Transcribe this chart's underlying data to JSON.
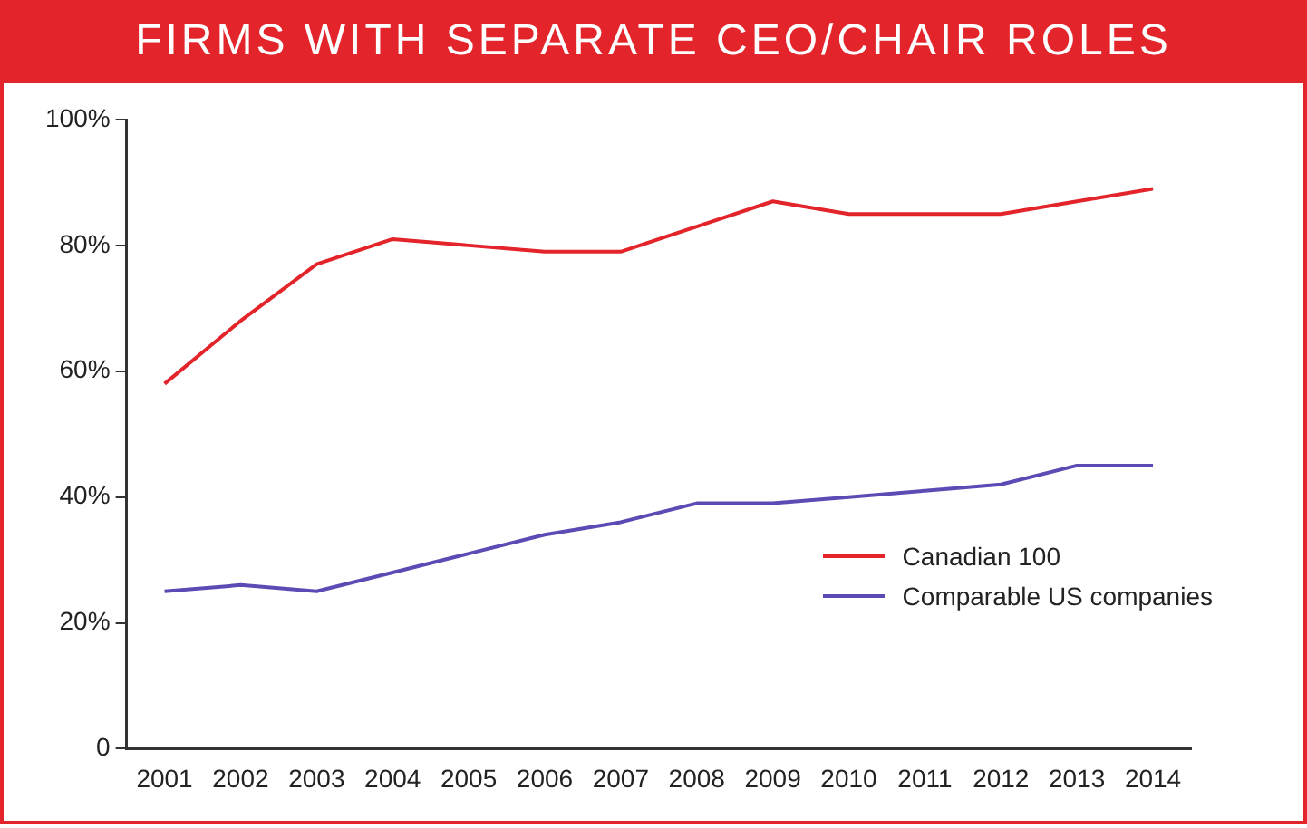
{
  "chart_data": {
    "type": "line",
    "title": "FIRMS WITH SEPARATE CEO/CHAIR ROLES",
    "categories": [
      "2001",
      "2002",
      "2003",
      "2004",
      "2005",
      "2006",
      "2007",
      "2008",
      "2009",
      "2010",
      "2011",
      "2012",
      "2013",
      "2014"
    ],
    "series": [
      {
        "name": "Canadian 100",
        "color": "#e3242b",
        "values": [
          58,
          68,
          77,
          81,
          80,
          79,
          79,
          83,
          87,
          85,
          85,
          85,
          87,
          89
        ]
      },
      {
        "name": "Comparable US companies",
        "color": "#5b4bb5",
        "values": [
          25,
          26,
          25,
          28,
          31,
          34,
          36,
          39,
          39,
          40,
          41,
          42,
          45,
          45
        ]
      }
    ],
    "ylim": [
      0,
      100
    ],
    "yticks": [
      {
        "value": 0,
        "label": "0"
      },
      {
        "value": 20,
        "label": "20%"
      },
      {
        "value": 40,
        "label": "40%"
      },
      {
        "value": 60,
        "label": "60%"
      },
      {
        "value": 80,
        "label": "80%"
      },
      {
        "value": 100,
        "label": "100%"
      }
    ],
    "grid": false,
    "legend": "bottom right",
    "marker": "none",
    "line_style": "solid"
  }
}
